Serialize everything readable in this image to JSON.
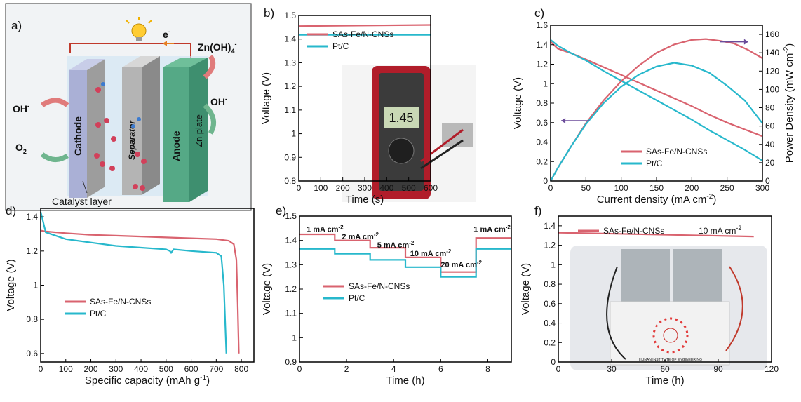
{
  "colors": {
    "sas": "#d9636f",
    "ptc": "#27b8cc"
  },
  "schematic": {
    "panel": "a)",
    "electron": "e",
    "electron_sup": "-",
    "zn_species": "Zn(OH)",
    "zn_species_sub": "4",
    "zn_species_sup": "-",
    "oh_left": "OH",
    "oh_left_sup": "-",
    "oh_right": "OH",
    "oh_right_sup": "-",
    "o2": "O",
    "o2_sub": "2",
    "cathode": "Cathode",
    "separator": "Separator",
    "anode": "Anode",
    "zn_plate": "Zn plate",
    "catalyst": "Catalyst layer"
  },
  "chart_data": [
    {
      "panel": "b)",
      "type": "line",
      "xlabel": "Time (s)",
      "ylabel": "Voltage (V)",
      "xlim": [
        0,
        600
      ],
      "ylim": [
        0.8,
        1.5
      ],
      "xticks": [
        0,
        100,
        200,
        300,
        400,
        500,
        600
      ],
      "yticks": [
        0.8,
        0.9,
        1.0,
        1.1,
        1.2,
        1.3,
        1.4,
        1.5
      ],
      "legend_position": "top-left",
      "photo_reading": "1.45",
      "series": [
        {
          "name": "SAs-Fe/N-CNSs",
          "color": "#d9636f",
          "x": [
            0,
            600
          ],
          "y": [
            1.455,
            1.46
          ]
        },
        {
          "name": "Pt/C",
          "color": "#27b8cc",
          "x": [
            0,
            600
          ],
          "y": [
            1.418,
            1.418
          ]
        }
      ]
    },
    {
      "panel": "c)",
      "type": "line",
      "xlabel": "Current density (mA cm",
      "xlabel_sup": "-2",
      "xlabel_end": ")",
      "ylabel": "Voltage (V)",
      "y2label": "Power Density (mW cm",
      "y2label_sup": "-2",
      "y2label_end": ")",
      "xlim": [
        0,
        300
      ],
      "ylim": [
        0,
        1.6
      ],
      "y2lim": [
        0,
        170
      ],
      "xticks": [
        0,
        50,
        100,
        150,
        200,
        250,
        300
      ],
      "yticks": [
        0.0,
        0.2,
        0.4,
        0.6,
        0.8,
        1.0,
        1.2,
        1.4,
        1.6
      ],
      "y2ticks": [
        0,
        20,
        40,
        60,
        80,
        100,
        120,
        140,
        160
      ],
      "legend_position": "bottom-center",
      "series": [
        {
          "name": "SAs-Fe/N-CNSs",
          "color": "#d9636f",
          "axis": "left",
          "x": [
            0,
            10,
            30,
            50,
            75,
            100,
            125,
            150,
            175,
            200,
            225,
            250,
            275,
            300
          ],
          "y": [
            1.43,
            1.36,
            1.31,
            1.25,
            1.17,
            1.09,
            1.01,
            0.93,
            0.85,
            0.77,
            0.68,
            0.6,
            0.53,
            0.46
          ]
        },
        {
          "name": "Pt/C",
          "color": "#27b8cc",
          "axis": "left",
          "x": [
            0,
            10,
            30,
            50,
            75,
            100,
            125,
            150,
            175,
            200,
            225,
            250,
            275,
            300
          ],
          "y": [
            1.45,
            1.39,
            1.31,
            1.24,
            1.13,
            1.03,
            0.93,
            0.83,
            0.73,
            0.63,
            0.52,
            0.42,
            0.32,
            0.21
          ]
        },
        {
          "name": "SAs-Fe/N-CNSs",
          "color": "#d9636f",
          "axis": "right",
          "x": [
            0,
            10,
            30,
            50,
            75,
            100,
            125,
            150,
            175,
            200,
            220,
            240,
            260,
            280,
            300
          ],
          "y": [
            0,
            14,
            39,
            63,
            88,
            109,
            126,
            140,
            149,
            154,
            155,
            153,
            150,
            143,
            134
          ]
        },
        {
          "name": "Pt/C",
          "color": "#27b8cc",
          "axis": "right",
          "x": [
            0,
            10,
            30,
            50,
            75,
            100,
            125,
            150,
            175,
            200,
            225,
            250,
            275,
            300
          ],
          "y": [
            0,
            14,
            39,
            62,
            85,
            103,
            116,
            125,
            129,
            126,
            118,
            104,
            88,
            63
          ]
        }
      ]
    },
    {
      "panel": "d)",
      "type": "line",
      "xlabel": "Specific capacity (mAh g",
      "xlabel_sup": "-1",
      "xlabel_end": ")",
      "ylabel": "Voltage (V)",
      "xlim": [
        0,
        850
      ],
      "ylim": [
        0.55,
        1.45
      ],
      "xticks": [
        0,
        100,
        200,
        300,
        400,
        500,
        600,
        700,
        800
      ],
      "yticks": [
        0.6,
        0.8,
        1.0,
        1.2,
        1.4
      ],
      "legend_position": "bottom-left",
      "series": [
        {
          "name": "SAs-Fe/N-CNSs",
          "color": "#d9636f",
          "x": [
            0,
            20,
            100,
            200,
            300,
            400,
            500,
            600,
            700,
            750,
            770,
            780,
            785,
            790
          ],
          "y": [
            1.32,
            1.315,
            1.305,
            1.295,
            1.29,
            1.285,
            1.28,
            1.275,
            1.27,
            1.26,
            1.24,
            1.15,
            0.9,
            0.6
          ]
        },
        {
          "name": "Pt/C",
          "color": "#27b8cc",
          "x": [
            0,
            20,
            100,
            200,
            300,
            400,
            500,
            515,
            520,
            530,
            600,
            700,
            720,
            730,
            735,
            740
          ],
          "y": [
            1.43,
            1.31,
            1.27,
            1.25,
            1.23,
            1.22,
            1.21,
            1.2,
            1.19,
            1.21,
            1.2,
            1.19,
            1.17,
            1.0,
            0.8,
            0.6
          ]
        }
      ]
    },
    {
      "panel": "e)",
      "type": "line",
      "xlabel": "Time (h)",
      "ylabel": "Voltage (V)",
      "xlim": [
        0,
        9
      ],
      "ylim": [
        0.9,
        1.5
      ],
      "xticks": [
        0,
        2,
        4,
        6,
        8
      ],
      "yticks": [
        0.9,
        1.0,
        1.1,
        1.2,
        1.3,
        1.4,
        1.5
      ],
      "legend_position": "middle-left",
      "annotations": [
        {
          "label": "1 mA cm",
          "sup": "-2",
          "x": 0.3,
          "y": 1.435
        },
        {
          "label": "2 mA cm",
          "sup": "-2",
          "x": 1.8,
          "y": 1.405
        },
        {
          "label": "5 mA cm",
          "sup": "-2",
          "x": 3.3,
          "y": 1.37
        },
        {
          "label": "10 mA cm",
          "sup": "-2",
          "x": 4.7,
          "y": 1.335
        },
        {
          "label": "20 mA cm",
          "sup": "-2",
          "x": 6.0,
          "y": 1.29
        },
        {
          "label": "1 mA cm",
          "sup": "-2",
          "x": 7.4,
          "y": 1.435
        }
      ],
      "series": [
        {
          "name": "SAs-Fe/N-CNSs",
          "color": "#d9636f",
          "x": [
            0,
            1.5,
            1.5,
            3,
            3,
            4.5,
            4.5,
            6,
            6,
            7.5,
            7.5,
            9
          ],
          "y": [
            1.425,
            1.425,
            1.4,
            1.4,
            1.37,
            1.37,
            1.33,
            1.33,
            1.27,
            1.27,
            1.41,
            1.41
          ]
        },
        {
          "name": "Pt/C",
          "color": "#27b8cc",
          "x": [
            0,
            1.5,
            1.5,
            3,
            3,
            4.5,
            4.5,
            6,
            6,
            7.5,
            7.5,
            9
          ],
          "y": [
            1.365,
            1.365,
            1.345,
            1.345,
            1.32,
            1.32,
            1.29,
            1.29,
            1.25,
            1.25,
            1.365,
            1.365
          ]
        }
      ]
    },
    {
      "panel": "f)",
      "type": "line",
      "xlabel": "Time (h)",
      "ylabel": "Voltage (V)",
      "xlim": [
        0,
        120
      ],
      "ylim": [
        0.0,
        1.5
      ],
      "xticks": [
        0,
        30,
        60,
        90,
        120
      ],
      "yticks": [
        0.0,
        0.2,
        0.4,
        0.6,
        0.8,
        1.0,
        1.2,
        1.4
      ],
      "legend_position": "top-center",
      "note": "10 mA cm",
      "note_sup": "-2",
      "photo_caption": "HUNAN INSTITUTE OF ENGINEERING",
      "series": [
        {
          "name": "SAs-Fe/N-CNSs",
          "color": "#d9636f",
          "x": [
            0,
            110
          ],
          "y": [
            1.33,
            1.29
          ]
        }
      ]
    }
  ]
}
